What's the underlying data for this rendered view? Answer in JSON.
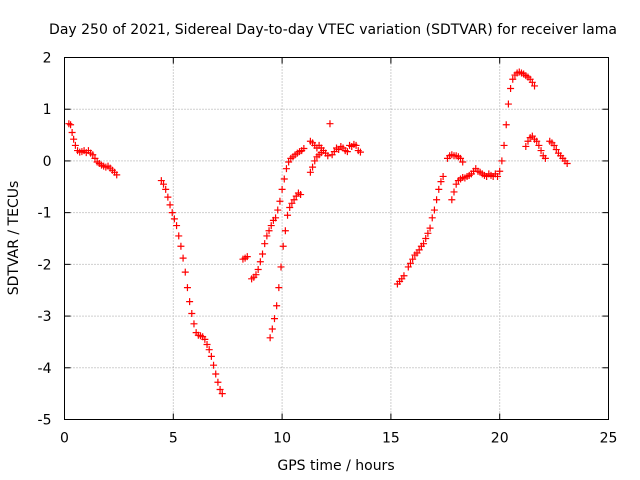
{
  "chart_data": {
    "type": "scatter",
    "title": "Day 250 of 2021, Sidereal Day-to-day VTEC variation (SDTVAR) for receiver lama",
    "xlabel": "GPS time / hours",
    "ylabel": "SDTVAR / TECUs",
    "xlim": [
      0,
      25
    ],
    "ylim": [
      -5,
      2
    ],
    "xticks": [
      0,
      5,
      10,
      15,
      20,
      25
    ],
    "yticks": [
      -5,
      -4,
      -3,
      -2,
      -1,
      0,
      1,
      2
    ],
    "grid": true,
    "marker": "plus",
    "color": "#ff0000",
    "series": [
      {
        "points": [
          [
            0.2,
            0.72
          ],
          [
            0.28,
            0.7
          ],
          [
            0.35,
            0.55
          ],
          [
            0.42,
            0.42
          ],
          [
            0.5,
            0.3
          ],
          [
            0.6,
            0.2
          ],
          [
            0.7,
            0.17
          ],
          [
            0.8,
            0.18
          ],
          [
            0.9,
            0.2
          ],
          [
            1.0,
            0.16
          ],
          [
            1.1,
            0.2
          ],
          [
            1.2,
            0.15
          ],
          [
            1.3,
            0.12
          ],
          [
            1.4,
            0.05
          ],
          [
            1.5,
            -0.02
          ],
          [
            1.6,
            -0.05
          ],
          [
            1.7,
            -0.08
          ],
          [
            1.8,
            -0.1
          ],
          [
            1.9,
            -0.12
          ],
          [
            2.0,
            -0.1
          ],
          [
            2.1,
            -0.14
          ],
          [
            2.2,
            -0.18
          ],
          [
            2.3,
            -0.22
          ],
          [
            2.4,
            -0.27
          ],
          [
            4.45,
            -0.38
          ],
          [
            4.55,
            -0.45
          ],
          [
            4.65,
            -0.55
          ],
          [
            4.75,
            -0.7
          ],
          [
            4.85,
            -0.85
          ],
          [
            4.95,
            -1.0
          ],
          [
            5.05,
            -1.12
          ],
          [
            5.15,
            -1.25
          ],
          [
            5.25,
            -1.45
          ],
          [
            5.35,
            -1.65
          ],
          [
            5.45,
            -1.88
          ],
          [
            5.55,
            -2.15
          ],
          [
            5.65,
            -2.45
          ],
          [
            5.75,
            -2.72
          ],
          [
            5.85,
            -2.95
          ],
          [
            5.95,
            -3.15
          ],
          [
            6.05,
            -3.32
          ],
          [
            6.15,
            -3.37
          ],
          [
            6.25,
            -3.38
          ],
          [
            6.35,
            -3.4
          ],
          [
            6.45,
            -3.45
          ],
          [
            6.55,
            -3.55
          ],
          [
            6.65,
            -3.65
          ],
          [
            6.75,
            -3.78
          ],
          [
            6.85,
            -3.95
          ],
          [
            6.95,
            -4.12
          ],
          [
            7.05,
            -4.28
          ],
          [
            7.15,
            -4.42
          ],
          [
            7.25,
            -4.5
          ],
          [
            8.2,
            -1.9
          ],
          [
            8.3,
            -1.88
          ],
          [
            8.4,
            -1.85
          ],
          [
            8.6,
            -2.28
          ],
          [
            8.7,
            -2.25
          ],
          [
            8.8,
            -2.2
          ],
          [
            8.9,
            -2.1
          ],
          [
            9.0,
            -1.95
          ],
          [
            9.1,
            -1.8
          ],
          [
            9.2,
            -1.6
          ],
          [
            9.3,
            -1.45
          ],
          [
            9.4,
            -1.35
          ],
          [
            9.5,
            -1.25
          ],
          [
            9.6,
            -1.15
          ],
          [
            9.7,
            -1.1
          ],
          [
            9.8,
            -0.95
          ],
          [
            9.9,
            -0.78
          ],
          [
            10.0,
            -0.55
          ],
          [
            10.1,
            -0.35
          ],
          [
            10.2,
            -0.15
          ],
          [
            10.3,
            -0.02
          ],
          [
            10.4,
            0.05
          ],
          [
            10.5,
            0.08
          ],
          [
            10.6,
            0.12
          ],
          [
            10.7,
            0.15
          ],
          [
            10.8,
            0.18
          ],
          [
            10.9,
            0.2
          ],
          [
            11.0,
            0.24
          ],
          [
            9.45,
            -3.42
          ],
          [
            9.55,
            -3.25
          ],
          [
            9.65,
            -3.05
          ],
          [
            9.75,
            -2.8
          ],
          [
            9.85,
            -2.45
          ],
          [
            9.95,
            -2.05
          ],
          [
            10.05,
            -1.65
          ],
          [
            10.15,
            -1.35
          ],
          [
            10.25,
            -1.05
          ],
          [
            10.35,
            -0.9
          ],
          [
            10.45,
            -0.82
          ],
          [
            10.55,
            -0.75
          ],
          [
            10.65,
            -0.68
          ],
          [
            10.75,
            -0.62
          ],
          [
            10.85,
            -0.65
          ],
          [
            11.3,
            -0.22
          ],
          [
            11.4,
            -0.12
          ],
          [
            11.5,
            0.0
          ],
          [
            11.6,
            0.08
          ],
          [
            11.7,
            0.12
          ],
          [
            11.8,
            0.16
          ],
          [
            11.9,
            0.2
          ],
          [
            12.0,
            0.15
          ],
          [
            12.1,
            0.1
          ],
          [
            12.2,
            0.72
          ],
          [
            12.3,
            0.12
          ],
          [
            12.4,
            0.18
          ],
          [
            12.5,
            0.25
          ],
          [
            12.6,
            0.22
          ],
          [
            12.7,
            0.28
          ],
          [
            12.8,
            0.25
          ],
          [
            12.9,
            0.2
          ],
          [
            13.0,
            0.18
          ],
          [
            13.1,
            0.3
          ],
          [
            13.2,
            0.28
          ],
          [
            13.3,
            0.32
          ],
          [
            13.4,
            0.3
          ],
          [
            13.5,
            0.2
          ],
          [
            13.6,
            0.17
          ],
          [
            11.3,
            0.38
          ],
          [
            11.4,
            0.35
          ],
          [
            11.5,
            0.3
          ],
          [
            11.6,
            0.25
          ],
          [
            11.7,
            0.3
          ],
          [
            11.8,
            0.25
          ],
          [
            15.3,
            -2.38
          ],
          [
            15.4,
            -2.33
          ],
          [
            15.5,
            -2.28
          ],
          [
            15.6,
            -2.22
          ],
          [
            15.8,
            -2.05
          ],
          [
            15.9,
            -1.98
          ],
          [
            16.0,
            -1.9
          ],
          [
            16.1,
            -1.82
          ],
          [
            16.2,
            -1.78
          ],
          [
            16.3,
            -1.72
          ],
          [
            16.4,
            -1.65
          ],
          [
            16.5,
            -1.6
          ],
          [
            16.6,
            -1.5
          ],
          [
            16.7,
            -1.4
          ],
          [
            16.8,
            -1.3
          ],
          [
            16.9,
            -1.1
          ],
          [
            17.0,
            -0.95
          ],
          [
            17.1,
            -0.75
          ],
          [
            17.2,
            -0.55
          ],
          [
            17.3,
            -0.4
          ],
          [
            17.4,
            -0.3
          ],
          [
            17.8,
            -0.75
          ],
          [
            17.9,
            -0.6
          ],
          [
            18.0,
            -0.45
          ],
          [
            18.1,
            -0.38
          ],
          [
            18.2,
            -0.35
          ],
          [
            18.3,
            -0.32
          ],
          [
            18.4,
            -0.33
          ],
          [
            18.5,
            -0.3
          ],
          [
            18.6,
            -0.28
          ],
          [
            18.7,
            -0.25
          ],
          [
            18.8,
            -0.2
          ],
          [
            18.9,
            -0.15
          ],
          [
            19.0,
            -0.2
          ],
          [
            19.1,
            -0.22
          ],
          [
            19.2,
            -0.25
          ],
          [
            19.3,
            -0.28
          ],
          [
            19.4,
            -0.3
          ],
          [
            19.5,
            -0.25
          ],
          [
            19.6,
            -0.28
          ],
          [
            19.7,
            -0.3
          ],
          [
            19.8,
            -0.25
          ],
          [
            19.9,
            -0.3
          ],
          [
            17.6,
            0.05
          ],
          [
            17.7,
            0.1
          ],
          [
            17.8,
            0.12
          ],
          [
            17.9,
            0.1
          ],
          [
            18.0,
            0.1
          ],
          [
            18.1,
            0.08
          ],
          [
            18.2,
            0.05
          ],
          [
            18.3,
            -0.02
          ],
          [
            20.0,
            -0.2
          ],
          [
            20.1,
            0.0
          ],
          [
            20.2,
            0.3
          ],
          [
            20.3,
            0.7
          ],
          [
            20.4,
            1.1
          ],
          [
            20.5,
            1.4
          ],
          [
            20.6,
            1.58
          ],
          [
            20.7,
            1.66
          ],
          [
            20.8,
            1.7
          ],
          [
            20.9,
            1.72
          ],
          [
            21.0,
            1.7
          ],
          [
            21.1,
            1.68
          ],
          [
            21.2,
            1.65
          ],
          [
            21.3,
            1.62
          ],
          [
            21.4,
            1.58
          ],
          [
            21.5,
            1.52
          ],
          [
            21.6,
            1.45
          ],
          [
            21.2,
            0.28
          ],
          [
            21.3,
            0.38
          ],
          [
            21.4,
            0.45
          ],
          [
            21.5,
            0.48
          ],
          [
            21.6,
            0.42
          ],
          [
            21.7,
            0.38
          ],
          [
            21.8,
            0.3
          ],
          [
            21.9,
            0.2
          ],
          [
            22.0,
            0.1
          ],
          [
            22.1,
            0.05
          ],
          [
            22.3,
            0.38
          ],
          [
            22.4,
            0.35
          ],
          [
            22.5,
            0.3
          ],
          [
            22.6,
            0.22
          ],
          [
            22.7,
            0.15
          ],
          [
            22.8,
            0.1
          ],
          [
            22.9,
            0.05
          ],
          [
            23.0,
            0.0
          ],
          [
            23.1,
            -0.05
          ]
        ]
      }
    ]
  }
}
